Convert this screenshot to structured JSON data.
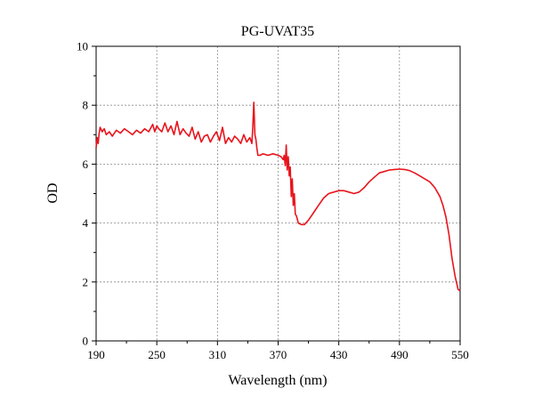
{
  "chart_data": {
    "type": "line",
    "title": "PG-UVAT35",
    "xlabel": "Wavelength (nm)",
    "ylabel": "OD",
    "xlim": [
      190,
      550
    ],
    "ylim": [
      0,
      10
    ],
    "xticks": [
      190,
      250,
      310,
      370,
      430,
      490,
      550
    ],
    "yticks": [
      0,
      2,
      4,
      6,
      8,
      10
    ],
    "grid": true,
    "series": [
      {
        "color": "#e8141c",
        "x": [
          190,
          191,
          192,
          193,
          194,
          196,
          198,
          200,
          203,
          206,
          210,
          214,
          218,
          222,
          226,
          230,
          234,
          238,
          242,
          246,
          248,
          250,
          252,
          255,
          258,
          261,
          264,
          267,
          270,
          273,
          276,
          279,
          282,
          285,
          288,
          291,
          294,
          297,
          300,
          303,
          306,
          309,
          312,
          315,
          318,
          321,
          324,
          327,
          330,
          333,
          336,
          339,
          342,
          344,
          345,
          346,
          347,
          348,
          349,
          350,
          352,
          355,
          360,
          365,
          370,
          373,
          375,
          376,
          377,
          378,
          379,
          380,
          381,
          382,
          383,
          384,
          385,
          386,
          387,
          388,
          390,
          393,
          396,
          400,
          405,
          410,
          415,
          420,
          425,
          430,
          435,
          440,
          445,
          450,
          455,
          460,
          465,
          470,
          475,
          480,
          485,
          490,
          495,
          500,
          505,
          510,
          515,
          520,
          525,
          530,
          533,
          536,
          539,
          542,
          545,
          548,
          550
        ],
        "y": [
          6.55,
          6.9,
          6.7,
          7.05,
          7.25,
          7.1,
          7.2,
          7.0,
          7.1,
          6.95,
          7.15,
          7.05,
          7.2,
          7.1,
          7.0,
          7.15,
          7.05,
          7.2,
          7.1,
          7.35,
          7.1,
          7.3,
          7.2,
          7.1,
          7.4,
          7.1,
          7.3,
          7.0,
          7.45,
          7.0,
          7.2,
          7.05,
          6.95,
          7.25,
          6.85,
          7.1,
          6.75,
          6.95,
          7.0,
          6.75,
          6.95,
          7.1,
          6.8,
          7.25,
          6.7,
          6.9,
          6.75,
          6.95,
          6.85,
          6.7,
          7.0,
          6.75,
          6.9,
          6.7,
          7.3,
          8.1,
          7.0,
          6.85,
          6.55,
          6.3,
          6.3,
          6.35,
          6.3,
          6.35,
          6.3,
          6.25,
          6.15,
          6.3,
          5.95,
          6.65,
          5.8,
          6.25,
          5.6,
          5.9,
          4.9,
          5.5,
          4.6,
          5.0,
          4.3,
          4.25,
          4.0,
          3.95,
          3.95,
          4.1,
          4.35,
          4.6,
          4.85,
          5.0,
          5.05,
          5.1,
          5.1,
          5.05,
          5.0,
          5.05,
          5.2,
          5.4,
          5.55,
          5.7,
          5.75,
          5.8,
          5.82,
          5.83,
          5.82,
          5.78,
          5.7,
          5.6,
          5.5,
          5.4,
          5.2,
          4.9,
          4.6,
          4.2,
          3.6,
          2.8,
          2.2,
          1.75,
          1.7
        ]
      }
    ]
  }
}
